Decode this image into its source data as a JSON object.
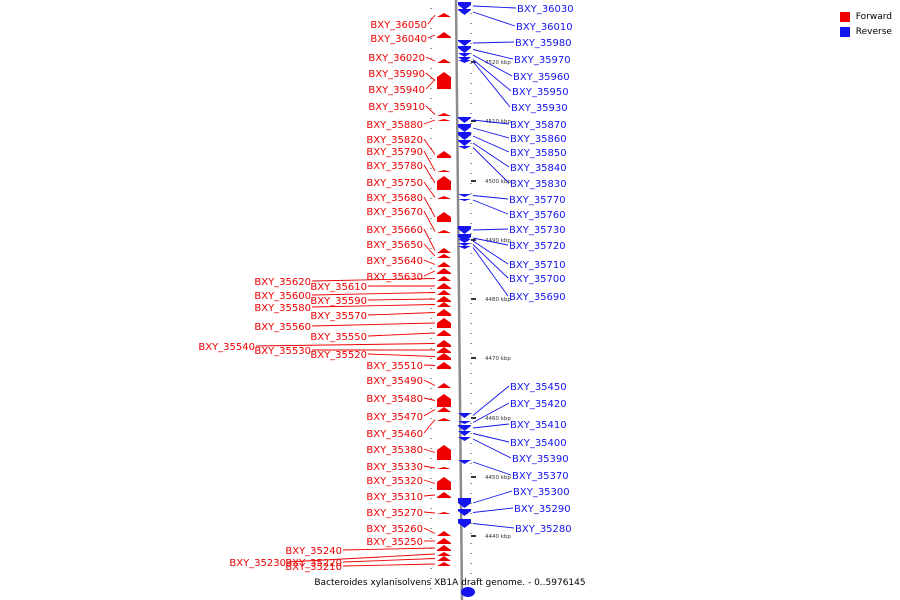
{
  "legend": {
    "forward_label": "Forward",
    "reverse_label": "Reverse",
    "forward_color": "#ee0000",
    "reverse_color": "#1414ee"
  },
  "caption": "Bacteroides xylanisolvens XB1A draft genome. - 0..5976145",
  "scale_labels": [
    "4520 kbp",
    "4510 kbp",
    "4500 kbp",
    "4490 kbp",
    "4480 kbp",
    "4470 kbp",
    "4460 kbp",
    "4450 kbp",
    "4440 kbp"
  ],
  "forward_genes": [
    {
      "name": "BXY_36050"
    },
    {
      "name": "BXY_36040"
    },
    {
      "name": "BXY_36020"
    },
    {
      "name": "BXY_35990"
    },
    {
      "name": "BXY_35940"
    },
    {
      "name": "BXY_35910"
    },
    {
      "name": "BXY_35880"
    },
    {
      "name": "BXY_35820"
    },
    {
      "name": "BXY_35790"
    },
    {
      "name": "BXY_35780"
    },
    {
      "name": "BXY_35750"
    },
    {
      "name": "BXY_35680"
    },
    {
      "name": "BXY_35670"
    },
    {
      "name": "BXY_35660"
    },
    {
      "name": "BXY_35650"
    },
    {
      "name": "BXY_35640"
    },
    {
      "name": "BXY_35630"
    },
    {
      "name": "BXY_35620"
    },
    {
      "name": "BXY_35610"
    },
    {
      "name": "BXY_35600"
    },
    {
      "name": "BXY_35590"
    },
    {
      "name": "BXY_35580"
    },
    {
      "name": "BXY_35570"
    },
    {
      "name": "BXY_35560"
    },
    {
      "name": "BXY_35550"
    },
    {
      "name": "BXY_35540"
    },
    {
      "name": "BXY_35530"
    },
    {
      "name": "BXY_35520"
    },
    {
      "name": "BXY_35510"
    },
    {
      "name": "BXY_35490"
    },
    {
      "name": "BXY_35480"
    },
    {
      "name": "BXY_35470"
    },
    {
      "name": "BXY_35460"
    },
    {
      "name": "BXY_35380"
    },
    {
      "name": "BXY_35330"
    },
    {
      "name": "BXY_35320"
    },
    {
      "name": "BXY_35310"
    },
    {
      "name": "BXY_35270"
    },
    {
      "name": "BXY_35260"
    },
    {
      "name": "BXY_35250"
    },
    {
      "name": "BXY_35240"
    },
    {
      "name": "BXY_35230"
    },
    {
      "name": "BXY_35220"
    },
    {
      "name": "BXY_35210"
    }
  ],
  "reverse_genes": [
    {
      "name": "BXY_36030"
    },
    {
      "name": "BXY_36010"
    },
    {
      "name": "BXY_35980"
    },
    {
      "name": "BXY_35970"
    },
    {
      "name": "BXY_35960"
    },
    {
      "name": "BXY_35950"
    },
    {
      "name": "BXY_35930"
    },
    {
      "name": "BXY_35870"
    },
    {
      "name": "BXY_35860"
    },
    {
      "name": "BXY_35850"
    },
    {
      "name": "BXY_35840"
    },
    {
      "name": "BXY_35830"
    },
    {
      "name": "BXY_35770"
    },
    {
      "name": "BXY_35760"
    },
    {
      "name": "BXY_35730"
    },
    {
      "name": "BXY_35720"
    },
    {
      "name": "BXY_35710"
    },
    {
      "name": "BXY_35700"
    },
    {
      "name": "BXY_35690"
    },
    {
      "name": "BXY_35450"
    },
    {
      "name": "BXY_35420"
    },
    {
      "name": "BXY_35410"
    },
    {
      "name": "BXY_35400"
    },
    {
      "name": "BXY_35390"
    },
    {
      "name": "BXY_35370"
    },
    {
      "name": "BXY_35300"
    },
    {
      "name": "BXY_35290"
    },
    {
      "name": "BXY_35280"
    }
  ]
}
